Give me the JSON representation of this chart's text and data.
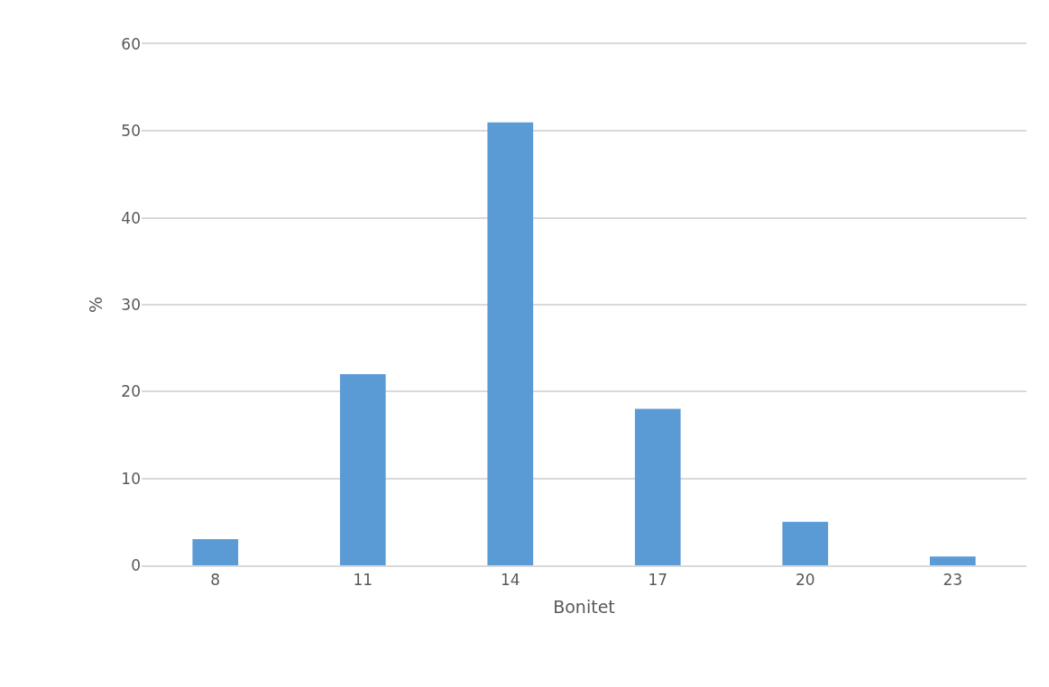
{
  "chart_data": {
    "type": "bar",
    "xlabel": "Bonitet",
    "ylabel": "%",
    "categories": [
      "8",
      "11",
      "14",
      "17",
      "20",
      "23"
    ],
    "values": [
      3,
      22,
      51,
      18,
      5,
      1
    ],
    "color": "#5b9bd5",
    "ylim": [
      0,
      60
    ],
    "yticks": [
      0,
      10,
      20,
      30,
      40,
      50,
      60
    ],
    "grid": "y"
  }
}
